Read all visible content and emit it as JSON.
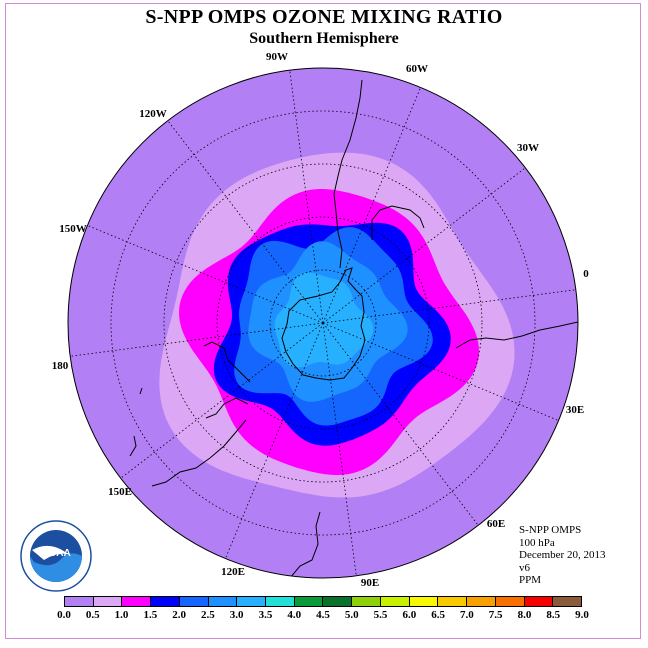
{
  "title": "S-NPP OMPS OZONE MIXING RATIO",
  "subtitle": "Southern Hemisphere",
  "longitude_labels": [
    "90W",
    "60W",
    "30W",
    "0",
    "30E",
    "60E",
    "90E",
    "120E",
    "150E",
    "180",
    "150W",
    "120W"
  ],
  "info": {
    "instrument": "S-NPP OMPS",
    "level": "100 hPa",
    "date": "December 20, 2013",
    "version": "v6",
    "units": "PPM"
  },
  "logo": {
    "text": "NOAA",
    "ring_text": "NATIONAL OCEANIC AND ATMOSPHERIC ADMINISTRATION · U.S. DEPARTMENT OF COMMERCE"
  },
  "colorbar": {
    "ticks": [
      "0.0",
      "0.5",
      "1.0",
      "1.5",
      "2.0",
      "2.5",
      "3.0",
      "3.5",
      "4.0",
      "4.5",
      "5.0",
      "5.5",
      "6.0",
      "6.5",
      "7.0",
      "7.5",
      "8.0",
      "8.5",
      "9.0"
    ],
    "colors": [
      "#b27ff5",
      "#dca8f5",
      "#ff00ff",
      "#0000ff",
      "#1466ff",
      "#1e90ff",
      "#27b0ff",
      "#22e0d8",
      "#0a9a3a",
      "#06722a",
      "#8ed00a",
      "#c8f000",
      "#f8f800",
      "#f8c800",
      "#f8a000",
      "#f87000",
      "#f80000",
      "#8b5a3a"
    ]
  },
  "map_colors": {
    "background": "#b27ff5",
    "band_0_5": "#dca8f5",
    "band_1_0": "#ff00ff",
    "band_1_5": "#0000ff",
    "band_2_0": "#1466ff",
    "band_2_5": "#1e90ff",
    "band_3_0": "#27b0ff"
  }
}
